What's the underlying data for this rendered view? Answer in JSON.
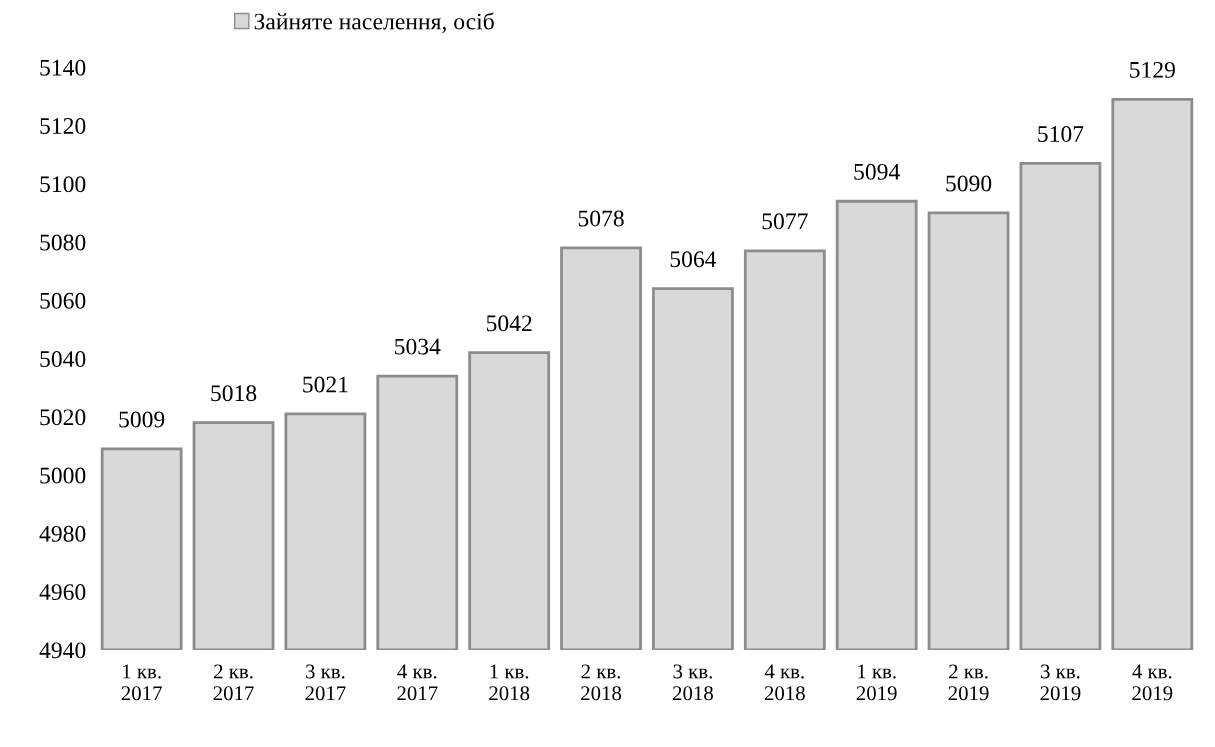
{
  "chart_data": {
    "type": "bar",
    "categories": [
      "1 кв.\n2017",
      "2 кв.\n2017",
      "3 кв.\n2017",
      "4 кв.\n2017",
      "1 кв.\n2018",
      "2 кв.\n2018",
      "3 кв.\n2018",
      "4 кв.\n2018",
      "1 кв.\n2019",
      "2 кв.\n2019",
      "3 кв.\n2019",
      "4 кв.\n2019"
    ],
    "series": [
      {
        "name": "Зайняте населення, осіб",
        "color": "#d9d9d9",
        "values": [
          5009,
          5018,
          5021,
          5034,
          5042,
          5078,
          5064,
          5077,
          5094,
          5090,
          5107,
          5129
        ]
      }
    ],
    "ylim": [
      4940,
      5140
    ],
    "yticks": [
      4940,
      4960,
      4980,
      5000,
      5020,
      5040,
      5060,
      5080,
      5100,
      5120,
      5140
    ],
    "data_labels": true,
    "grid": false,
    "legend": "top left"
  }
}
